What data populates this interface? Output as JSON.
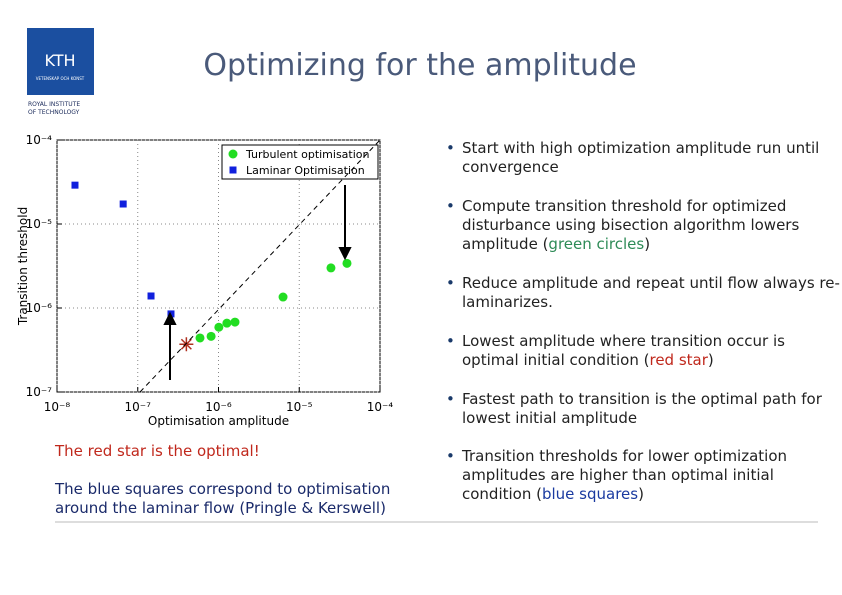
{
  "logo": {
    "name": "KTH",
    "motto": "VETENSKAP OCH KONST",
    "institute": [
      "ROYAL INSTITUTE",
      "OF TECHNOLOGY"
    ]
  },
  "title": "Optimizing for the amplitude",
  "chart_data": {
    "type": "scatter",
    "xscale": "log",
    "yscale": "log",
    "grid": true,
    "xlabel": "Optimisation amplitude",
    "ylabel": "Transition threshold",
    "legend": "upper right",
    "xlim": [
      1e-08,
      0.0001
    ],
    "ylim": [
      1e-07,
      0.0001
    ],
    "xticks": [
      {
        "value": 1e-08,
        "label": "10⁻⁸"
      },
      {
        "value": 1e-07,
        "label": "10⁻⁷"
      },
      {
        "value": 1e-06,
        "label": "10⁻⁶"
      },
      {
        "value": 1e-05,
        "label": "10⁻⁵"
      },
      {
        "value": 0.0001,
        "label": "10⁻⁴"
      }
    ],
    "yticks": [
      {
        "value": 1e-07,
        "label": "10⁻⁷"
      },
      {
        "value": 1e-06,
        "label": "10⁻⁶"
      },
      {
        "value": 1e-05,
        "label": "10⁻⁵"
      },
      {
        "value": 0.0001,
        "label": "10⁻⁴"
      }
    ],
    "series": [
      {
        "name": "Turbulent optimisation",
        "color": "#22dd22",
        "marker": "circle",
        "x": [
          5.9e-07,
          8.1e-07,
          1.01e-06,
          1.27e-06,
          1.6e-06,
          6.3e-06,
          2.47e-05,
          3.9e-05
        ],
        "y": [
          4.4e-07,
          4.6e-07,
          5.9e-07,
          6.6e-07,
          6.8e-07,
          1.35e-06,
          3e-06,
          3.4e-06
        ]
      },
      {
        "name": "Laminar Optimisation",
        "color": "#1020dd",
        "marker": "square",
        "x": [
          1.67e-08,
          6.6e-08,
          1.46e-07,
          2.58e-07
        ],
        "y": [
          2.9e-05,
          1.73e-05,
          1.39e-06,
          8.5e-07
        ]
      },
      {
        "color": "#b03020",
        "marker": "star",
        "x": [
          4e-07
        ],
        "y": [
          3.7e-07
        ]
      }
    ]
  },
  "captions": [
    {
      "text": "The red star is the optimal!",
      "color": "#c0281c"
    },
    {
      "text": "The blue squares correspond to optimisation around the laminar flow (Pringle & Kerswell)",
      "color": "#1a2a6a"
    }
  ],
  "bullets": [
    [
      {
        "text": "Start with high optimization amplitude run until convergence"
      }
    ],
    [
      {
        "text": "Compute transition threshold for optimized disturbance using bisection algorithm lowers amplitude ("
      },
      {
        "text": "green circles",
        "color": "#2e8b57"
      },
      {
        "text": ")"
      }
    ],
    [
      {
        "text": "Reduce amplitude and repeat until flow always re-laminarizes."
      }
    ],
    [
      {
        "text": "Lowest amplitude where transition occur is optimal initial condition ("
      },
      {
        "text": "red star",
        "color": "#c0281c"
      },
      {
        "text": ")"
      }
    ],
    [
      {
        "text": "Fastest path to transition is the optimal path for lowest initial amplitude"
      }
    ],
    [
      {
        "text": "Transition thresholds for lower optimization amplitudes are higher than optimal initial condition ("
      },
      {
        "text": "blue squares",
        "color": "#1a3aa0"
      },
      {
        "text": ")"
      }
    ]
  ]
}
